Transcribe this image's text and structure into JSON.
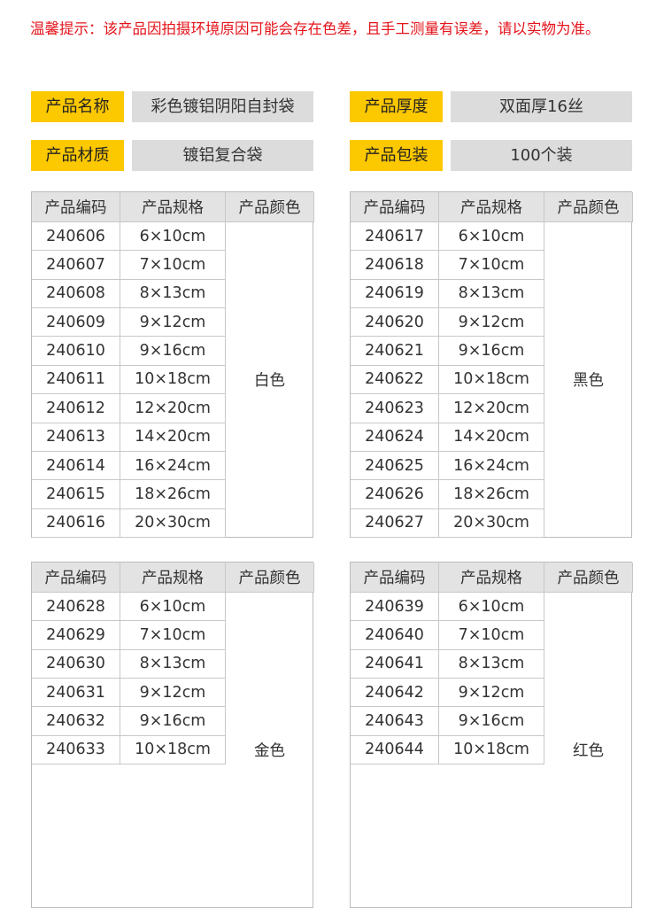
{
  "notice": "温馨提示：该产品因拍摄环境原因可能会存在色差，且手工测量有误差，请以实物为准。",
  "info": [
    {
      "label": "产品名称",
      "value": "彩色镀铝阴阳自封袋"
    },
    {
      "label": "产品厚度",
      "value": "双面厚16丝"
    },
    {
      "label": "产品材质",
      "value": "镀铝复合袋"
    },
    {
      "label": "产品包装",
      "value": "100个装"
    }
  ],
  "headers": [
    "产品编码",
    "产品规格",
    "产品颜色"
  ],
  "tables": [
    {
      "color": "白色",
      "rows": [
        [
          "240606",
          "6×10cm"
        ],
        [
          "240607",
          "7×10cm"
        ],
        [
          "240608",
          "8×13cm"
        ],
        [
          "240609",
          "9×12cm"
        ],
        [
          "240610",
          "9×16cm"
        ],
        [
          "240611",
          "10×18cm"
        ],
        [
          "240612",
          "12×20cm"
        ],
        [
          "240613",
          "14×20cm"
        ],
        [
          "240614",
          "16×24cm"
        ],
        [
          "240615",
          "18×26cm"
        ],
        [
          "240616",
          "20×30cm"
        ]
      ]
    },
    {
      "color": "黑色",
      "rows": [
        [
          "240617",
          "6×10cm"
        ],
        [
          "240618",
          "7×10cm"
        ],
        [
          "240619",
          "8×13cm"
        ],
        [
          "240620",
          "9×12cm"
        ],
        [
          "240621",
          "9×16cm"
        ],
        [
          "240622",
          "10×18cm"
        ],
        [
          "240623",
          "12×20cm"
        ],
        [
          "240624",
          "14×20cm"
        ],
        [
          "240625",
          "16×24cm"
        ],
        [
          "240626",
          "18×26cm"
        ],
        [
          "240627",
          "20×30cm"
        ]
      ]
    },
    {
      "color": "金色",
      "rows": [
        [
          "240628",
          "6×10cm"
        ],
        [
          "240629",
          "7×10cm"
        ],
        [
          "240630",
          "8×13cm"
        ],
        [
          "240631",
          "9×12cm"
        ],
        [
          "240632",
          "9×16cm"
        ],
        [
          "240633",
          "10×18cm"
        ]
      ]
    },
    {
      "color": "红色",
      "rows": [
        [
          "240639",
          "6×10cm"
        ],
        [
          "240640",
          "7×10cm"
        ],
        [
          "240641",
          "8×13cm"
        ],
        [
          "240642",
          "9×12cm"
        ],
        [
          "240643",
          "9×16cm"
        ],
        [
          "240644",
          "10×18cm"
        ]
      ]
    }
  ]
}
